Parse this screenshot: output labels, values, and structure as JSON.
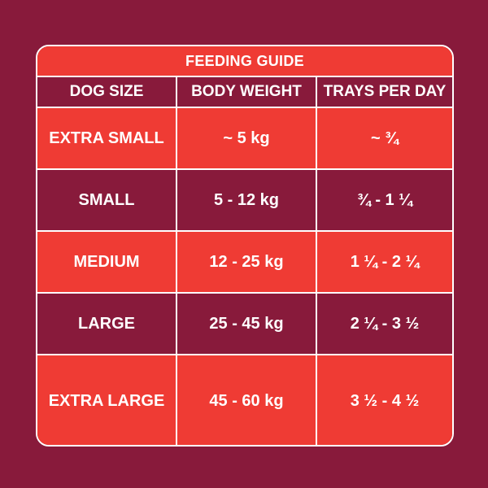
{
  "title": "FEEDING GUIDE",
  "colors": {
    "background": "#881a3b",
    "accent": "#ef3b34",
    "border": "#ffffff",
    "text": "#ffffff"
  },
  "headers": {
    "dog_size": "DOG SIZE",
    "body_weight": "BODY WEIGHT",
    "trays_per_day": "TRAYS PER DAY"
  },
  "rows": [
    {
      "size": "EXTRA SMALL",
      "weight": "~ 5 kg",
      "trays": "~ ¾"
    },
    {
      "size": "SMALL",
      "weight": "5 - 12 kg",
      "trays": "¾ - 1 ¼"
    },
    {
      "size": "MEDIUM",
      "weight": "12 - 25 kg",
      "trays": "1 ¼ - 2 ¼"
    },
    {
      "size": "LARGE",
      "weight": "25 - 45 kg",
      "trays": "2 ¼ - 3 ½"
    },
    {
      "size": "EXTRA LARGE",
      "weight": "45 - 60 kg",
      "trays": "3 ½ - 4 ½"
    }
  ]
}
